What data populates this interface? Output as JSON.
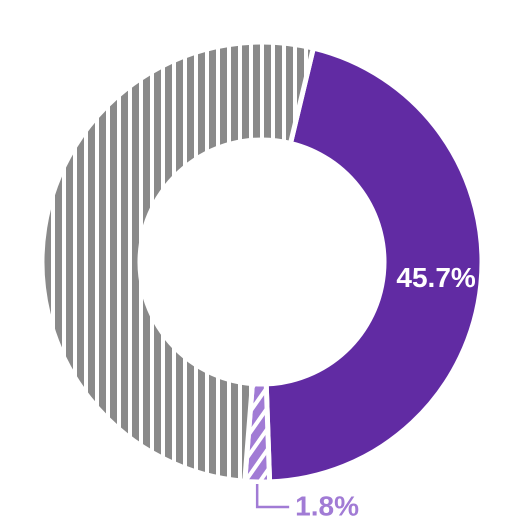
{
  "chart_data": {
    "type": "donut",
    "values": [
      45.7,
      1.8,
      52.5
    ],
    "value_labels": [
      "45.7%",
      "1.8%",
      null
    ],
    "colors": [
      "#612ba3",
      "#a17bd5",
      "#8a8a8a"
    ],
    "hatches": [
      "none",
      "diagonal",
      "vertical"
    ]
  }
}
